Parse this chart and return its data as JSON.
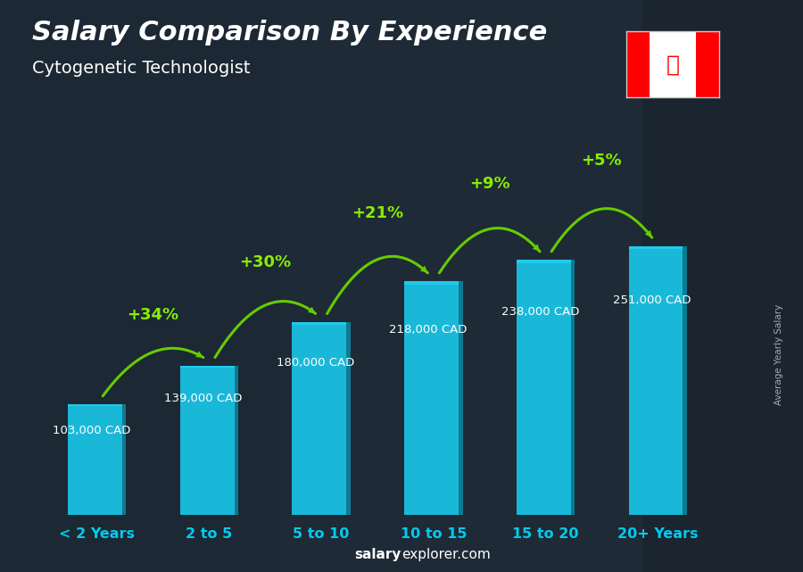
{
  "title": "Salary Comparison By Experience",
  "subtitle": "Cytogenetic Technologist",
  "categories": [
    "< 2 Years",
    "2 to 5",
    "5 to 10",
    "10 to 15",
    "15 to 20",
    "20+ Years"
  ],
  "values": [
    103000,
    139000,
    180000,
    218000,
    238000,
    251000
  ],
  "labels": [
    "103,000 CAD",
    "139,000 CAD",
    "180,000 CAD",
    "218,000 CAD",
    "238,000 CAD",
    "251,000 CAD"
  ],
  "pct_labels": [
    "+34%",
    "+30%",
    "+21%",
    "+9%",
    "+5%"
  ],
  "bar_color_face": "#1ab8d8",
  "bar_color_dark": "#0d7a92",
  "bar_color_top": "#22d4f5",
  "bg_overlay": "#1a2530",
  "title_color": "#ffffff",
  "subtitle_color": "#ffffff",
  "label_color": "#ffffff",
  "pct_color": "#88ee00",
  "arrow_color": "#66cc00",
  "xtick_color": "#00ccee",
  "footer_salary": "salary",
  "footer_rest": "explorer.com",
  "side_label": "Average Yearly Salary",
  "ylim": [
    0,
    310000
  ],
  "bar_width": 0.52
}
